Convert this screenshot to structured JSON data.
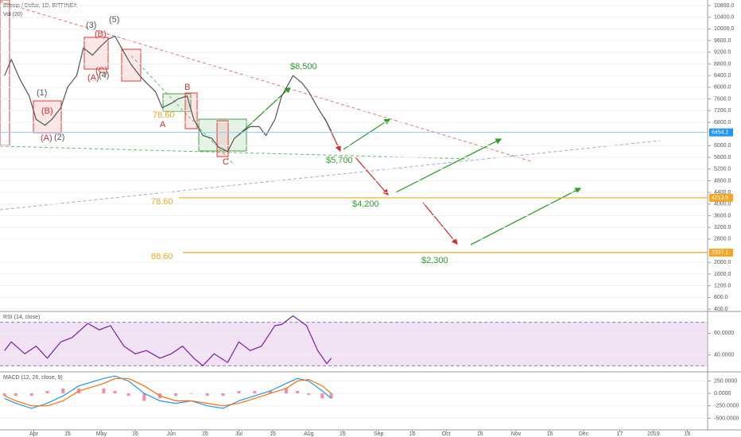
{
  "header": {
    "symbol": "Bitcoin / Dollar, 1D, BITFINEX",
    "volume": "Vol (20)"
  },
  "chart_data": [
    {
      "type": "line",
      "pane": "price",
      "x": [
        78,
        81,
        85,
        89,
        92,
        96,
        99,
        103,
        106,
        110,
        113,
        117,
        120,
        124,
        127,
        131,
        134,
        138,
        141,
        145,
        148,
        152,
        155,
        159,
        162,
        166,
        170,
        173,
        177,
        180,
        184,
        187,
        191,
        194,
        198,
        201,
        205,
        206,
        210,
        213,
        217,
        221,
        223
      ],
      "series": [
        {
          "color": "#555555",
          "values": [
            8400,
            8950,
            8250,
            7700,
            6900,
            6700,
            6900,
            7300,
            8000,
            8400,
            9350,
            9100,
            9350,
            9650,
            9750,
            9200,
            8800,
            8400,
            8150,
            7850,
            7300,
            7450,
            7600,
            7700,
            6900,
            6350,
            6250,
            5950,
            5800,
            6250,
            6500,
            6650,
            6650,
            6350,
            6900,
            7700,
            8250,
            8400,
            8150,
            7850,
            7300,
            6800,
            6500
          ]
        }
      ],
      "xlim": [
        76,
        390
      ],
      "ylim": [
        320,
        10990
      ],
      "yticks": [
        {
          "value": 10800,
          "label": "10800.0"
        },
        {
          "value": 10400,
          "label": "10400.0"
        },
        {
          "value": 10000,
          "label": "10000.0"
        },
        {
          "value": 9600,
          "label": "9600.0"
        },
        {
          "value": 9200,
          "label": "9200.0"
        },
        {
          "value": 8800,
          "label": "8800.0"
        },
        {
          "value": 8400,
          "label": "8400.0"
        },
        {
          "value": 8000,
          "label": "8000.0"
        },
        {
          "value": 7600,
          "label": "7600.0"
        },
        {
          "value": 7200,
          "label": "7200.0"
        },
        {
          "value": 6800,
          "label": "6800.0"
        },
        {
          "value": 6000,
          "label": "6000.0"
        },
        {
          "value": 5600,
          "label": "5600.0"
        },
        {
          "value": 5200,
          "label": "5200.0"
        },
        {
          "value": 4800,
          "label": "4800.0"
        },
        {
          "value": 4400,
          "label": "4400.0"
        },
        {
          "value": 4000,
          "label": "4000.0"
        },
        {
          "value": 3600,
          "label": "3600.0"
        },
        {
          "value": 3200,
          "label": "3200.0"
        },
        {
          "value": 2800,
          "label": "2800.0"
        },
        {
          "value": 2000,
          "label": "2000.0"
        },
        {
          "value": 1600,
          "label": "1600.0"
        },
        {
          "value": 1200,
          "label": "1200.0"
        },
        {
          "value": 800,
          "label": "800.0"
        },
        {
          "value": 400,
          "label": "400.0"
        }
      ],
      "last_price": 6454.2,
      "levels": [
        {
          "price": 4213.9,
          "text": "78.60"
        },
        {
          "price": 2337.1,
          "text": "88.60"
        }
      ],
      "targets": [
        "$8,500",
        "$5,700",
        "$4,200",
        "$2,300"
      ],
      "wave_labels": [
        "(1)",
        "(2)",
        "(3)",
        "(4)",
        "(5)",
        "(B)",
        "(A)",
        "(C)",
        "(B)",
        "(A)",
        "A",
        "B",
        "C",
        "78.60"
      ]
    },
    {
      "type": "line",
      "pane": "rsi",
      "title": "RSI (14, close)",
      "x": [
        78,
        81,
        87,
        92,
        97,
        103,
        108,
        115,
        120,
        125,
        131,
        136,
        141,
        147,
        152,
        157,
        162,
        166,
        171,
        177,
        182,
        187,
        192,
        198,
        201,
        206,
        212,
        217,
        221,
        223
      ],
      "series": [
        {
          "color": "#7b1fa2",
          "values": [
            44,
            52,
            41,
            48,
            37,
            52,
            56,
            69,
            63,
            67,
            48,
            41,
            44,
            37,
            41,
            48,
            37,
            30,
            41,
            33,
            52,
            44,
            48,
            67,
            68,
            76,
            67,
            44,
            32,
            37
          ]
        }
      ],
      "xlim": [
        76,
        390
      ],
      "ylim": [
        24.4,
        80
      ],
      "bands": [
        30,
        70
      ],
      "yticks": [
        {
          "value": 60,
          "label": "60.0000"
        },
        {
          "value": 40,
          "label": "40.0000"
        }
      ]
    },
    {
      "type": "line",
      "pane": "macd",
      "title": "MACD (12, 26, close, 9)",
      "x": [
        78,
        83,
        90,
        97,
        104,
        111,
        122,
        127,
        133,
        140,
        147,
        154,
        161,
        168,
        175,
        182,
        189,
        196,
        203,
        208,
        213,
        219,
        223
      ],
      "series": [
        {
          "color": "#2196f3",
          "values": [
            -100,
            -200,
            -300,
            -200,
            -50,
            150,
            300,
            350,
            250,
            0,
            -150,
            -200,
            -150,
            -250,
            -300,
            -150,
            -50,
            50,
            200,
            300,
            250,
            50,
            -100
          ]
        },
        {
          "color": "#ff6d00",
          "values": [
            -50,
            -150,
            -250,
            -250,
            -150,
            50,
            200,
            300,
            300,
            150,
            -50,
            -150,
            -150,
            -200,
            -250,
            -200,
            -100,
            0,
            100,
            250,
            280,
            150,
            0
          ]
        }
      ],
      "histogram": {
        "color": "#e91e63",
        "values": [
          -50,
          -50,
          -50,
          50,
          100,
          100,
          100,
          50,
          -50,
          -150,
          -100,
          -50,
          0,
          -50,
          -50,
          50,
          50,
          50,
          100,
          50,
          -30,
          -100,
          -100
        ]
      },
      "xlim": [
        76,
        390
      ],
      "ylim": [
        -733,
        433
      ],
      "yticks": [
        {
          "value": 250,
          "label": "250.0000"
        },
        {
          "value": 0,
          "label": "0.0000"
        },
        {
          "value": -250,
          "label": "-250.0000"
        },
        {
          "value": -500,
          "label": "-500.0000"
        }
      ],
      "xticks": [
        {
          "value": 91,
          "label": "Apr"
        },
        {
          "value": 106,
          "label": "16"
        },
        {
          "value": 121,
          "label": "May"
        },
        {
          "value": 136,
          "label": "16"
        },
        {
          "value": 152,
          "label": "Jun"
        },
        {
          "value": 167,
          "label": "16"
        },
        {
          "value": 182,
          "label": "Jul"
        },
        {
          "value": 197,
          "label": "16"
        },
        {
          "value": 213,
          "label": "Aug"
        },
        {
          "value": 228,
          "label": "16"
        },
        {
          "value": 244,
          "label": "Sep"
        },
        {
          "value": 259,
          "label": "16"
        },
        {
          "value": 274,
          "label": "Oct"
        },
        {
          "value": 289,
          "label": "16"
        },
        {
          "value": 305,
          "label": "Nov"
        },
        {
          "value": 320,
          "label": "16"
        },
        {
          "value": 335,
          "label": "Dec"
        },
        {
          "value": 351,
          "label": "17"
        },
        {
          "value": 366,
          "label": "2019"
        },
        {
          "value": 381,
          "label": "16"
        }
      ]
    }
  ]
}
